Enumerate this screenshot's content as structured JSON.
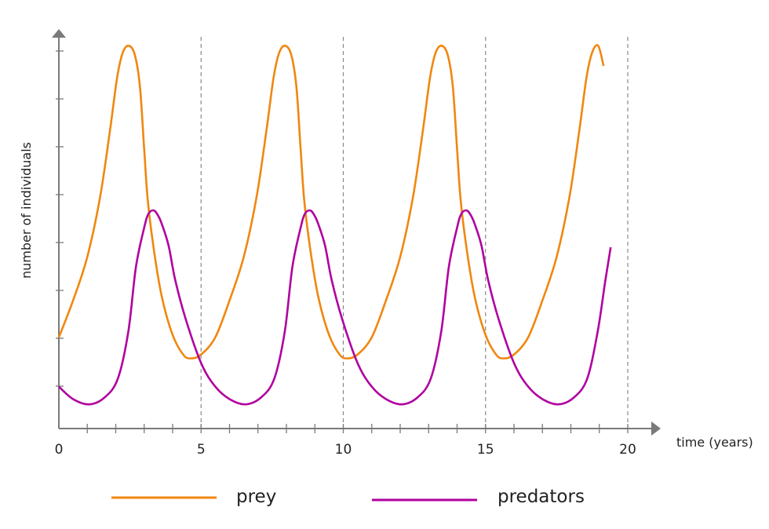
{
  "chart_data": {
    "type": "line",
    "title": "",
    "xlabel": "time (years)",
    "ylabel": "number of individuals",
    "xlim": [
      0,
      21
    ],
    "ylim": [
      0.11,
      8.4
    ],
    "x_tick_labels": [
      "0",
      "5",
      "10",
      "15",
      "20"
    ],
    "x_ticks_major": [
      0,
      5,
      10,
      15,
      20
    ],
    "x_ticks_minor_step": 1,
    "y_ticks": [
      1,
      2,
      3,
      4,
      5,
      6,
      7,
      8
    ],
    "y_tick_labels_shown": false,
    "grid": "dashed vertical lines at x = 5, 10, 15, 20",
    "legend_position": "bottom",
    "axis_color": "#7a7a7a",
    "series": [
      {
        "name": "prey",
        "color": "#f0870f",
        "points": [
          [
            0,
            2.02
          ],
          [
            0.5,
            2.79
          ],
          [
            1.0,
            3.7
          ],
          [
            1.45,
            4.95
          ],
          [
            1.8,
            6.35
          ],
          [
            2.05,
            7.45
          ],
          [
            2.25,
            7.97
          ],
          [
            2.46,
            8.11
          ],
          [
            2.67,
            7.92
          ],
          [
            2.85,
            7.26
          ],
          [
            3.0,
            5.95
          ],
          [
            3.13,
            4.86
          ],
          [
            3.36,
            3.77
          ],
          [
            3.63,
            2.84
          ],
          [
            4.0,
            2.07
          ],
          [
            4.37,
            1.66
          ],
          [
            4.64,
            1.58
          ],
          [
            5.0,
            1.66
          ],
          [
            5.5,
            2.02
          ],
          [
            6.0,
            2.79
          ],
          [
            6.5,
            3.7
          ],
          [
            6.95,
            4.95
          ],
          [
            7.3,
            6.35
          ],
          [
            7.55,
            7.45
          ],
          [
            7.75,
            7.97
          ],
          [
            7.96,
            8.11
          ],
          [
            8.17,
            7.92
          ],
          [
            8.35,
            7.26
          ],
          [
            8.5,
            5.95
          ],
          [
            8.63,
            4.86
          ],
          [
            8.86,
            3.77
          ],
          [
            9.13,
            2.84
          ],
          [
            9.5,
            2.07
          ],
          [
            9.87,
            1.66
          ],
          [
            10.14,
            1.58
          ],
          [
            10.5,
            1.66
          ],
          [
            11,
            2.02
          ],
          [
            11.5,
            2.79
          ],
          [
            12,
            3.7
          ],
          [
            12.45,
            4.95
          ],
          [
            12.8,
            6.35
          ],
          [
            13.05,
            7.45
          ],
          [
            13.25,
            7.97
          ],
          [
            13.46,
            8.11
          ],
          [
            13.67,
            7.92
          ],
          [
            13.85,
            7.26
          ],
          [
            14,
            5.95
          ],
          [
            14.13,
            4.86
          ],
          [
            14.36,
            3.77
          ],
          [
            14.63,
            2.84
          ],
          [
            15,
            2.07
          ],
          [
            15.37,
            1.66
          ],
          [
            15.64,
            1.58
          ],
          [
            16,
            1.66
          ],
          [
            16.5,
            2.02
          ],
          [
            17,
            2.79
          ],
          [
            17.5,
            3.7
          ],
          [
            17.95,
            4.95
          ],
          [
            18.3,
            6.35
          ],
          [
            18.55,
            7.45
          ],
          [
            18.75,
            7.97
          ],
          [
            18.96,
            8.11
          ],
          [
            19.15,
            7.69
          ]
        ]
      },
      {
        "name": "predators",
        "color": "#b0009f",
        "points": [
          [
            0,
            0.99
          ],
          [
            0.5,
            0.73
          ],
          [
            1.06,
            0.62
          ],
          [
            1.6,
            0.76
          ],
          [
            2.07,
            1.15
          ],
          [
            2.44,
            2.13
          ],
          [
            2.71,
            3.49
          ],
          [
            3.0,
            4.31
          ],
          [
            3.15,
            4.6
          ],
          [
            3.34,
            4.67
          ],
          [
            3.5,
            4.55
          ],
          [
            3.63,
            4.37
          ],
          [
            3.86,
            3.93
          ],
          [
            4.09,
            3.22
          ],
          [
            4.46,
            2.4
          ],
          [
            5.01,
            1.47
          ],
          [
            5.5,
            0.99
          ],
          [
            6,
            0.73
          ],
          [
            6.56,
            0.62
          ],
          [
            7.1,
            0.76
          ],
          [
            7.57,
            1.15
          ],
          [
            7.94,
            2.13
          ],
          [
            8.21,
            3.49
          ],
          [
            8.5,
            4.31
          ],
          [
            8.65,
            4.6
          ],
          [
            8.84,
            4.67
          ],
          [
            9,
            4.55
          ],
          [
            9.13,
            4.37
          ],
          [
            9.36,
            3.93
          ],
          [
            9.59,
            3.22
          ],
          [
            9.96,
            2.4
          ],
          [
            10.51,
            1.47
          ],
          [
            11,
            0.99
          ],
          [
            11.5,
            0.73
          ],
          [
            12.06,
            0.62
          ],
          [
            12.6,
            0.76
          ],
          [
            13.07,
            1.15
          ],
          [
            13.44,
            2.13
          ],
          [
            13.71,
            3.49
          ],
          [
            14,
            4.31
          ],
          [
            14.15,
            4.6
          ],
          [
            14.34,
            4.67
          ],
          [
            14.5,
            4.55
          ],
          [
            14.63,
            4.37
          ],
          [
            14.86,
            3.93
          ],
          [
            15.09,
            3.22
          ],
          [
            15.46,
            2.4
          ],
          [
            16.01,
            1.47
          ],
          [
            16.5,
            0.99
          ],
          [
            17,
            0.73
          ],
          [
            17.56,
            0.62
          ],
          [
            18.1,
            0.76
          ],
          [
            18.57,
            1.15
          ],
          [
            18.94,
            2.13
          ],
          [
            19.21,
            3.2
          ],
          [
            19.4,
            3.9
          ]
        ]
      }
    ]
  }
}
